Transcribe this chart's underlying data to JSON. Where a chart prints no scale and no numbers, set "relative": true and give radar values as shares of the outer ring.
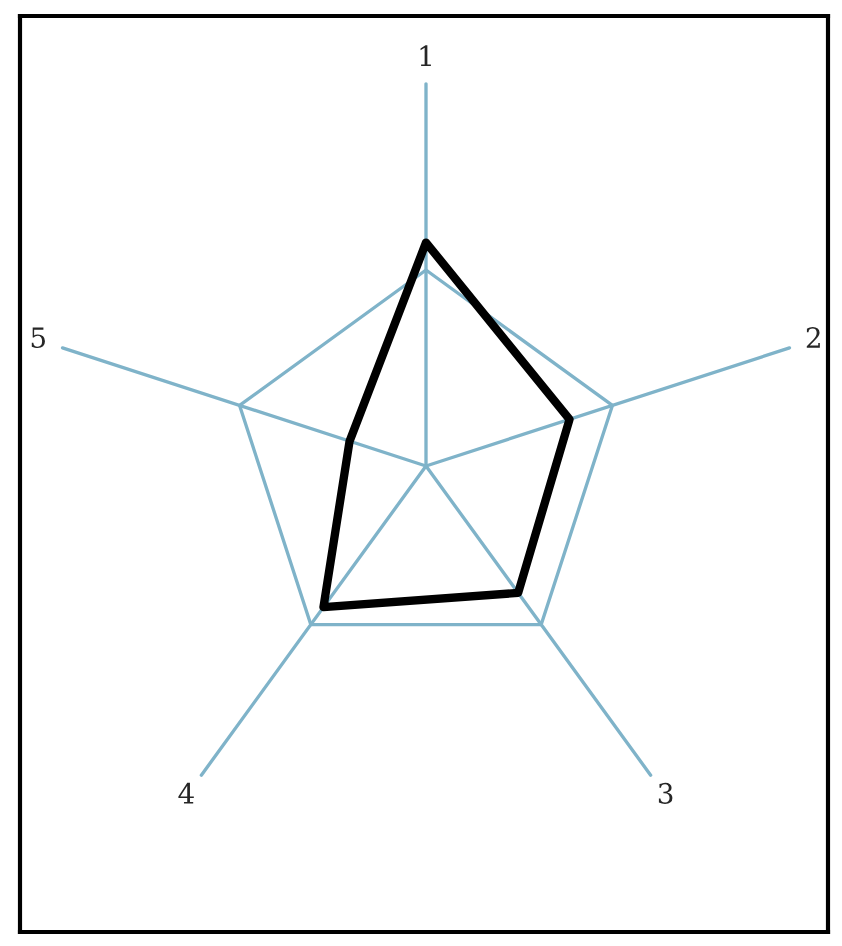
{
  "chart_data": {
    "type": "radar",
    "relative": true,
    "categories": [
      "1",
      "2",
      "3",
      "4",
      "5"
    ],
    "grid": true,
    "series": [
      {
        "color": "#000000",
        "values": [
          1.14,
          0.77,
          0.8,
          0.89,
          0.41
        ]
      }
    ]
  }
}
